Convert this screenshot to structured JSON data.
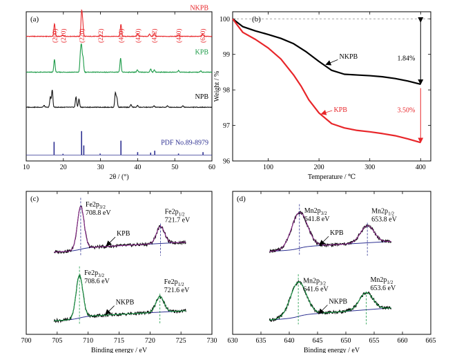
{
  "figure": {
    "panels": [
      "(a)",
      "(b)",
      "(c)",
      "(d)"
    ]
  },
  "chart_data": [
    {
      "id": "a",
      "type": "line",
      "panel_label": "(a)",
      "xlabel": "2θ / (°)",
      "ylabel": "",
      "xlim": [
        10,
        60
      ],
      "xticks": [
        10,
        20,
        30,
        40,
        50,
        60
      ],
      "tick_labels": [
        "10",
        "20",
        "30",
        "40",
        "50",
        "60"
      ],
      "series": [
        {
          "name": "NKPB",
          "color": "#e8262a",
          "baseline": 0.835,
          "peaks": [
            [
              17.6,
              0.55
            ],
            [
              19.8,
              0.06
            ],
            [
              24.9,
              1.0
            ],
            [
              25.2,
              0.55
            ],
            [
              30.0,
              0.05
            ],
            [
              35.5,
              0.52
            ],
            [
              40.0,
              0.12
            ],
            [
              43.2,
              0.1
            ],
            [
              44.5,
              0.14
            ],
            [
              51.0,
              0.07
            ],
            [
              57.5,
              0.1
            ]
          ]
        },
        {
          "name": "KPB",
          "color": "#1a9a46",
          "baseline": 0.595,
          "peaks": [
            [
              17.6,
              0.55
            ],
            [
              24.6,
              0.75
            ],
            [
              24.9,
              1.0
            ],
            [
              25.3,
              0.6
            ],
            [
              35.4,
              0.6
            ],
            [
              39.9,
              0.1
            ],
            [
              43.5,
              0.14
            ],
            [
              44.5,
              0.1
            ],
            [
              51.0,
              0.07
            ],
            [
              57.0,
              0.06
            ]
          ]
        },
        {
          "name": "NPB",
          "color": "#111111",
          "baseline": 0.36,
          "peaks": [
            [
              14.8,
              0.08
            ],
            [
              16.5,
              0.45
            ],
            [
              17.0,
              0.75
            ],
            [
              23.4,
              0.45
            ],
            [
              24.2,
              0.35
            ],
            [
              34.0,
              0.62
            ],
            [
              34.4,
              0.4
            ],
            [
              38.2,
              0.12
            ],
            [
              40.0,
              0.08
            ],
            [
              44.4,
              0.06
            ],
            [
              48.0,
              0.06
            ],
            [
              52.2,
              0.06
            ]
          ]
        }
      ],
      "reference": {
        "name": "PDF No.89-8979",
        "color": "#2e3192",
        "baseline": 0.04,
        "sticks": [
          [
            17.5,
            0.55
          ],
          [
            19.9,
            0.05
          ],
          [
            24.9,
            1.0
          ],
          [
            25.5,
            0.4
          ],
          [
            29.9,
            0.06
          ],
          [
            35.5,
            0.6
          ],
          [
            40.0,
            0.12
          ],
          [
            43.5,
            0.1
          ],
          [
            44.6,
            0.18
          ],
          [
            51.0,
            0.06
          ],
          [
            57.6,
            0.12
          ]
        ]
      },
      "hkl": [
        {
          "label": "(200)",
          "x": 17.6
        },
        {
          "label": "(210)",
          "x": 19.9
        },
        {
          "label": "(220)",
          "x": 24.9
        },
        {
          "label": "(222)",
          "x": 30.0
        },
        {
          "label": "(400)",
          "x": 35.5
        },
        {
          "label": "(420)",
          "x": 40.0
        },
        {
          "label": "(422)",
          "x": 44.4
        },
        {
          "label": "(440)",
          "x": 51.0
        },
        {
          "label": "(620)",
          "x": 57.5
        }
      ],
      "hkl_color": "#e8262a",
      "annotations": {
        "NKPB": "NKPB",
        "KPB": "KPB",
        "NPB": "NPB",
        "reference": "PDF No.89-8979"
      }
    },
    {
      "id": "b",
      "type": "line",
      "panel_label": "(b)",
      "xlabel": "Temperature / ℃",
      "ylabel": "Weight / %",
      "xlim": [
        30,
        420
      ],
      "ylim": [
        96.0,
        100.2
      ],
      "xticks": [
        100,
        200,
        300,
        400
      ],
      "yticks": [
        96,
        97,
        98,
        99,
        100
      ],
      "tick_labels_x": [
        "100",
        "200",
        "300",
        "400"
      ],
      "tick_labels_y": [
        "96",
        "97",
        "98",
        "99",
        "100"
      ],
      "reference_line": 100,
      "series": [
        {
          "name": "NKPB",
          "color": "#000000",
          "x": [
            30,
            50,
            75,
            100,
            125,
            150,
            175,
            200,
            225,
            250,
            275,
            300,
            325,
            350,
            375,
            400
          ],
          "y": [
            100.0,
            99.78,
            99.66,
            99.56,
            99.45,
            99.3,
            99.07,
            98.8,
            98.55,
            98.44,
            98.42,
            98.4,
            98.37,
            98.32,
            98.25,
            98.16
          ]
        },
        {
          "name": "KPB",
          "color": "#e8262a",
          "x": [
            30,
            50,
            75,
            100,
            125,
            150,
            165,
            180,
            200,
            225,
            250,
            275,
            300,
            325,
            350,
            375,
            400
          ],
          "y": [
            100.0,
            99.62,
            99.42,
            99.18,
            98.87,
            98.42,
            98.1,
            97.72,
            97.35,
            97.05,
            96.93,
            96.86,
            96.82,
            96.77,
            96.71,
            96.62,
            96.52
          ]
        }
      ],
      "labels": {
        "NKPB": "NKPB",
        "KPB": "KPB",
        "loss_NKPB": "1.84%",
        "loss_KPB": "3.50%"
      }
    },
    {
      "id": "c",
      "type": "line",
      "panel_label": "(c)",
      "xlabel": "Binding energy / eV",
      "ylabel": "",
      "xlim": [
        700,
        730
      ],
      "xticks": [
        700,
        705,
        710,
        715,
        720,
        725,
        730
      ],
      "tick_labels": [
        "700",
        "705",
        "710",
        "715",
        "720",
        "725",
        "730"
      ],
      "spectra": [
        {
          "name": "KPB",
          "offset": 0.56,
          "range": [
            704.5,
            725.8
          ],
          "peaks": [
            {
              "center": 708.8,
              "height": 0.3,
              "width": 0.55
            },
            {
              "center": 721.7,
              "height": 0.12,
              "width": 0.65
            }
          ],
          "bg_start": 0.015,
          "bg_end": 0.065,
          "fit_color": "#8b2a8b",
          "bg_color": "#2e3192",
          "data_color": "#000000",
          "label_p32_main": "Fe2p",
          "label_p32_sub": "3/2",
          "label_p32_value": "708.8 eV",
          "label_p12_main": "Fe2p",
          "label_p12_sub": "1/2",
          "label_p12_value": "721.7 eV",
          "sample_label": "KPB"
        },
        {
          "name": "NKPB",
          "offset": 0.08,
          "range": [
            704.5,
            725.8
          ],
          "peaks": [
            {
              "center": 708.6,
              "height": 0.3,
              "width": 0.55
            },
            {
              "center": 721.6,
              "height": 0.11,
              "width": 0.65
            }
          ],
          "bg_start": 0.015,
          "bg_end": 0.065,
          "fit_color": "#1a9a46",
          "bg_color": "#2e3192",
          "data_color": "#000000",
          "label_p32_main": "Fe2p",
          "label_p32_sub": "3/2",
          "label_p32_value": "708.6 eV",
          "label_p12_main": "Fe2p",
          "label_p12_sub": "1/2",
          "label_p12_value": "721.6 eV",
          "sample_label": "NKPB"
        }
      ]
    },
    {
      "id": "d",
      "type": "line",
      "panel_label": "(d)",
      "xlabel": "Binding energy / eV",
      "ylabel": "",
      "xlim": [
        630,
        665
      ],
      "xticks": [
        630,
        635,
        640,
        645,
        650,
        655,
        660,
        665
      ],
      "tick_labels": [
        "630",
        "635",
        "640",
        "645",
        "650",
        "655",
        "660",
        "665"
      ],
      "spectra": [
        {
          "name": "KPB",
          "offset": 0.56,
          "range": [
            636.5,
            658.0
          ],
          "peaks": [
            {
              "center": 641.8,
              "height": 0.25,
              "width": 1.4
            },
            {
              "center": 653.8,
              "height": 0.12,
              "width": 1.2
            }
          ],
          "bg_start": 0.02,
          "bg_end": 0.07,
          "fit_color": "#8b2a8b",
          "bg_color": "#2e3192",
          "data_color": "#000000",
          "label_p32_main": "Mn2p",
          "label_p32_sub": "3/2",
          "label_p32_value": "641.8 eV",
          "label_p12_main": "Mn2p",
          "label_p12_sub": "1/2",
          "label_p12_value": "653.8 eV",
          "sample_label": "KPB"
        },
        {
          "name": "NKPB",
          "offset": 0.08,
          "range": [
            636.5,
            658.0
          ],
          "peaks": [
            {
              "center": 641.6,
              "height": 0.24,
              "width": 1.4
            },
            {
              "center": 653.6,
              "height": 0.12,
              "width": 1.2
            }
          ],
          "bg_start": 0.02,
          "bg_end": 0.085,
          "fit_color": "#1a9a46",
          "bg_color": "#2e3192",
          "data_color": "#000000",
          "label_p32_main": "Mn2p",
          "label_p32_sub": "3/2",
          "label_p32_value": "641.6 eV",
          "label_p12_main": "Mn2p",
          "label_p12_sub": "1/2",
          "label_p12_value": "653.6 eV",
          "sample_label": "NKPB"
        }
      ]
    }
  ]
}
